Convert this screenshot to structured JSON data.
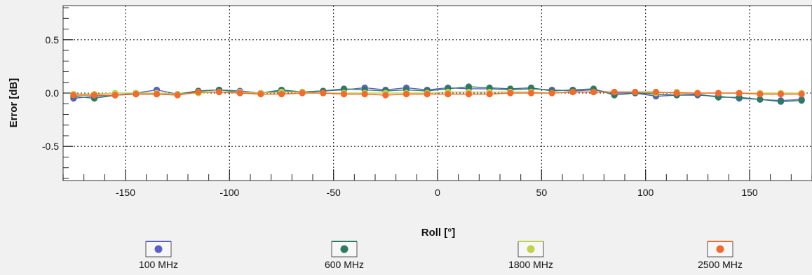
{
  "chart_data": {
    "type": "line",
    "title": "",
    "xlabel": "Roll [°]",
    "ylabel": "Error [dB]",
    "xlim": [
      -180,
      180
    ],
    "ylim": [
      -0.82,
      0.82
    ],
    "x_ticks": [
      -150,
      -100,
      -50,
      0,
      50,
      100,
      150
    ],
    "y_ticks": [
      0.5,
      0.0,
      -0.5
    ],
    "y_tick_labels": [
      "0.5",
      "0.0",
      "-0.5"
    ],
    "grid": true,
    "legend": "bottom",
    "x": [
      -175,
      -165,
      -155,
      -145,
      -135,
      -125,
      -115,
      -105,
      -95,
      -85,
      -75,
      -65,
      -55,
      -45,
      -35,
      -25,
      -15,
      -5,
      5,
      15,
      25,
      35,
      45,
      55,
      65,
      75,
      85,
      95,
      105,
      115,
      125,
      135,
      145,
      155,
      165,
      175
    ],
    "series": [
      {
        "name": "100 MHz",
        "color": "#5a5fc9",
        "values": [
          -0.05,
          -0.03,
          -0.02,
          0.0,
          0.03,
          -0.01,
          0.02,
          0.03,
          0.02,
          0.0,
          0.02,
          0.01,
          0.02,
          0.03,
          0.05,
          0.03,
          0.05,
          0.03,
          0.05,
          0.04,
          0.04,
          0.03,
          0.04,
          0.03,
          0.02,
          0.03,
          0.0,
          0.0,
          -0.03,
          -0.02,
          -0.02,
          -0.03,
          -0.05,
          -0.06,
          -0.07,
          -0.06
        ]
      },
      {
        "name": "600 MHz",
        "color": "#2c7a62",
        "values": [
          -0.03,
          -0.05,
          -0.02,
          -0.01,
          -0.01,
          -0.01,
          0.02,
          0.03,
          0.01,
          0.0,
          0.03,
          0.01,
          0.02,
          0.04,
          0.03,
          0.02,
          0.03,
          0.02,
          0.04,
          0.06,
          0.05,
          0.04,
          0.05,
          0.02,
          0.03,
          0.04,
          -0.02,
          0.0,
          -0.01,
          -0.02,
          -0.01,
          -0.04,
          -0.04,
          -0.06,
          -0.08,
          -0.07
        ]
      },
      {
        "name": "1800 MHz",
        "color": "#bfd24a",
        "values": [
          -0.01,
          -0.01,
          0.0,
          0.0,
          0.0,
          -0.01,
          0.0,
          0.01,
          0.01,
          0.0,
          0.01,
          0.01,
          0.0,
          0.0,
          0.0,
          0.0,
          0.0,
          0.0,
          0.01,
          0.01,
          0.01,
          0.01,
          0.01,
          0.0,
          0.01,
          0.01,
          0.01,
          0.01,
          0.0,
          0.01,
          0.0,
          0.0,
          0.0,
          0.0,
          0.0,
          0.0
        ]
      },
      {
        "name": "2500 MHz",
        "color": "#f26a2e",
        "values": [
          -0.02,
          -0.02,
          -0.02,
          -0.01,
          -0.01,
          -0.02,
          0.01,
          0.01,
          0.0,
          -0.01,
          -0.01,
          0.0,
          0.0,
          -0.01,
          -0.01,
          -0.02,
          -0.01,
          -0.01,
          -0.01,
          -0.01,
          -0.01,
          0.0,
          0.0,
          0.0,
          0.01,
          0.01,
          0.01,
          0.01,
          0.01,
          0.0,
          0.0,
          0.0,
          0.0,
          -0.01,
          -0.01,
          -0.01
        ]
      }
    ]
  }
}
